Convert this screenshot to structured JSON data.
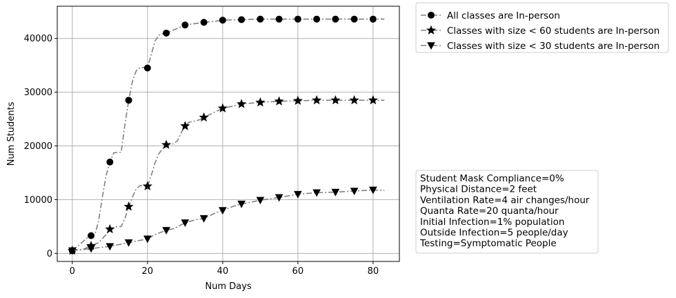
{
  "chart_data": {
    "type": "line",
    "xlabel": "Num Days",
    "ylabel": "Num Students",
    "xlim": [
      -4,
      87
    ],
    "ylim": [
      -1500,
      46000
    ],
    "xticks": [
      0,
      20,
      40,
      60,
      80
    ],
    "yticks": [
      0,
      10000,
      20000,
      30000,
      40000
    ],
    "grid": true,
    "legend_position": "outside top-right",
    "line_color": "#808080",
    "marker_color": "#000000",
    "series": [
      {
        "name": "All classes are In-person",
        "marker": "circle",
        "x": [
          0,
          5,
          10,
          15,
          20,
          25,
          30,
          35,
          40,
          45,
          50,
          55,
          60,
          65,
          70,
          75,
          80
        ],
        "values": [
          500,
          3300,
          17000,
          28500,
          34500,
          41000,
          42500,
          43000,
          43400,
          43500,
          43600,
          43600,
          43600,
          43600,
          43600,
          43600,
          43600
        ],
        "curve_x": [
          0,
          2,
          4,
          5,
          6,
          7,
          8,
          9,
          10,
          11,
          12,
          13,
          14,
          15,
          16,
          17,
          18,
          19,
          20,
          21,
          22,
          23,
          24,
          25,
          27,
          29,
          30,
          32,
          34,
          35,
          38,
          40,
          45,
          50,
          55,
          60,
          65,
          70,
          75,
          80,
          83
        ],
        "curve_y": [
          500,
          1700,
          2900,
          3300,
          3500,
          6000,
          10500,
          14500,
          17000,
          18700,
          18800,
          18800,
          24000,
          28500,
          32000,
          34000,
          34600,
          34600,
          34500,
          37000,
          39500,
          40600,
          40900,
          41000,
          41600,
          42200,
          42500,
          42700,
          42900,
          43000,
          43200,
          43400,
          43500,
          43600,
          43600,
          43600,
          43600,
          43600,
          43600,
          43600,
          43600
        ]
      },
      {
        "name": "Classes with size < 60 students are In-person",
        "marker": "star",
        "x": [
          0,
          5,
          10,
          15,
          20,
          25,
          30,
          35,
          40,
          45,
          50,
          55,
          60,
          65,
          70,
          75,
          80
        ],
        "values": [
          500,
          1400,
          4500,
          8700,
          12500,
          20200,
          23700,
          25300,
          27000,
          27800,
          28100,
          28300,
          28400,
          28500,
          28500,
          28500,
          28500
        ],
        "curve_x": [
          0,
          3,
          5,
          7,
          9,
          10,
          12,
          13,
          14,
          15,
          16,
          17,
          18,
          19,
          20,
          21,
          22,
          23,
          24,
          25,
          27,
          28,
          29,
          30,
          31,
          33,
          34,
          35,
          37,
          40,
          42,
          45,
          50,
          55,
          60,
          65,
          70,
          75,
          80,
          83
        ],
        "curve_y": [
          500,
          800,
          1400,
          2000,
          3500,
          4500,
          5000,
          5000,
          6500,
          8700,
          10500,
          12000,
          12600,
          12600,
          12500,
          14500,
          16800,
          18500,
          19500,
          20200,
          20400,
          21000,
          22500,
          23700,
          24400,
          24700,
          24900,
          25300,
          26000,
          27000,
          27300,
          27800,
          28100,
          28300,
          28400,
          28500,
          28500,
          28500,
          28500,
          28500
        ]
      },
      {
        "name": "Classes with size < 30 students are In-person",
        "marker": "triangle_down",
        "x": [
          0,
          5,
          10,
          15,
          20,
          25,
          30,
          35,
          40,
          45,
          50,
          55,
          60,
          65,
          70,
          75,
          80
        ],
        "values": [
          500,
          900,
          1300,
          2000,
          2700,
          4300,
          5700,
          6500,
          8000,
          9200,
          9900,
          10400,
          11000,
          11300,
          11400,
          11600,
          11800
        ],
        "curve_x": [
          0,
          5,
          10,
          15,
          20,
          22,
          25,
          27,
          30,
          33,
          35,
          38,
          40,
          43,
          45,
          48,
          50,
          55,
          60,
          65,
          70,
          75,
          80,
          83
        ],
        "curve_y": [
          500,
          900,
          1300,
          2000,
          2700,
          3500,
          4300,
          4600,
          5700,
          6300,
          6500,
          7500,
          8000,
          8800,
          9200,
          9600,
          9900,
          10400,
          11000,
          11300,
          11400,
          11600,
          11800,
          11700
        ]
      }
    ]
  },
  "info_box": {
    "lines": [
      "Student Mask Compliance=0%",
      "Physical Distance=2 feet",
      "Ventilation Rate=4 air changes/hour",
      "Quanta Rate=20 quanta/hour",
      "Initial Infection=1% population",
      "Outside Infection=5 people/day",
      "Testing=Symptomatic People"
    ]
  }
}
